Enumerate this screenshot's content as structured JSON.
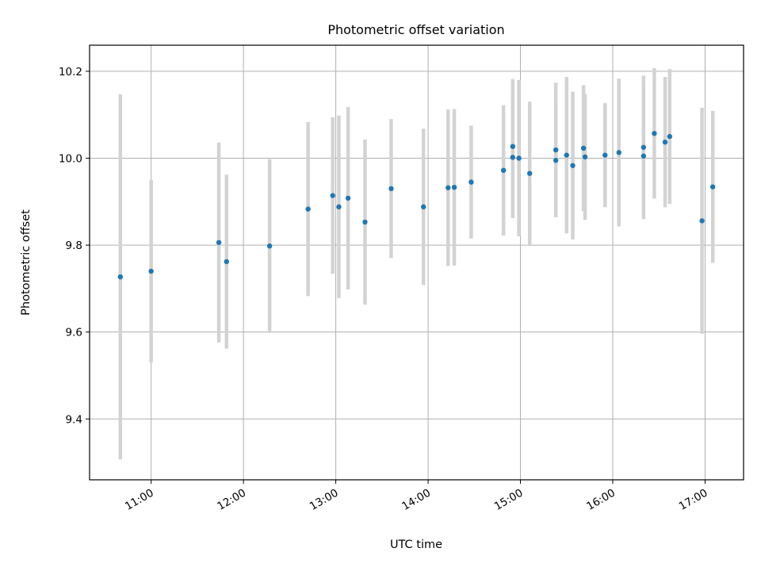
{
  "chart_data": {
    "type": "scatter",
    "title": "Photometric offset variation",
    "xlabel": "UTC time",
    "ylabel": "Photometric offset",
    "xlim": [
      "10:20",
      "17:25"
    ],
    "ylim": [
      9.26,
      10.26
    ],
    "xticks": [
      "11:00",
      "12:00",
      "13:00",
      "14:00",
      "15:00",
      "16:00",
      "17:00"
    ],
    "yticks": [
      9.4,
      9.6,
      9.8,
      10.0,
      10.2
    ],
    "grid": true,
    "errorbar_color": "#d3d3d3",
    "marker_color": "#1f77b4",
    "points": [
      {
        "x": "10:40",
        "y": 9.727,
        "err": 0.42
      },
      {
        "x": "11:00",
        "y": 9.74,
        "err": 0.21
      },
      {
        "x": "11:44",
        "y": 9.806,
        "err": 0.23
      },
      {
        "x": "11:49",
        "y": 9.762,
        "err": 0.2
      },
      {
        "x": "12:17",
        "y": 9.798,
        "err": 0.2
      },
      {
        "x": "12:42",
        "y": 9.883,
        "err": 0.2
      },
      {
        "x": "12:58",
        "y": 9.914,
        "err": 0.18
      },
      {
        "x": "13:02",
        "y": 9.888,
        "err": 0.21
      },
      {
        "x": "13:08",
        "y": 9.908,
        "err": 0.21
      },
      {
        "x": "13:19",
        "y": 9.853,
        "err": 0.19
      },
      {
        "x": "13:36",
        "y": 9.93,
        "err": 0.16
      },
      {
        "x": "13:57",
        "y": 9.888,
        "err": 0.18
      },
      {
        "x": "14:13",
        "y": 9.932,
        "err": 0.18
      },
      {
        "x": "14:17",
        "y": 9.933,
        "err": 0.18
      },
      {
        "x": "14:28",
        "y": 9.945,
        "err": 0.13
      },
      {
        "x": "14:49",
        "y": 9.972,
        "err": 0.15
      },
      {
        "x": "14:55",
        "y": 10.027,
        "err": 0.155
      },
      {
        "x": "14:55",
        "y": 10.002,
        "err": 0.14
      },
      {
        "x": "14:59",
        "y": 10.0,
        "err": 0.18
      },
      {
        "x": "15:06",
        "y": 9.965,
        "err": 0.165
      },
      {
        "x": "15:23",
        "y": 10.019,
        "err": 0.155
      },
      {
        "x": "15:23",
        "y": 9.995,
        "err": 0.13
      },
      {
        "x": "15:30",
        "y": 10.007,
        "err": 0.18
      },
      {
        "x": "15:34",
        "y": 9.983,
        "err": 0.17
      },
      {
        "x": "15:41",
        "y": 10.023,
        "err": 0.145
      },
      {
        "x": "15:42",
        "y": 10.003,
        "err": 0.145
      },
      {
        "x": "15:55",
        "y": 10.007,
        "err": 0.12
      },
      {
        "x": "16:04",
        "y": 10.013,
        "err": 0.17
      },
      {
        "x": "16:20",
        "y": 10.025,
        "err": 0.165
      },
      {
        "x": "16:20",
        "y": 10.005,
        "err": 0.145
      },
      {
        "x": "16:27",
        "y": 10.057,
        "err": 0.15
      },
      {
        "x": "16:34",
        "y": 10.037,
        "err": 0.15
      },
      {
        "x": "16:37",
        "y": 10.05,
        "err": 0.155
      },
      {
        "x": "16:58",
        "y": 9.856,
        "err": 0.26
      },
      {
        "x": "17:05",
        "y": 9.934,
        "err": 0.175
      }
    ]
  }
}
